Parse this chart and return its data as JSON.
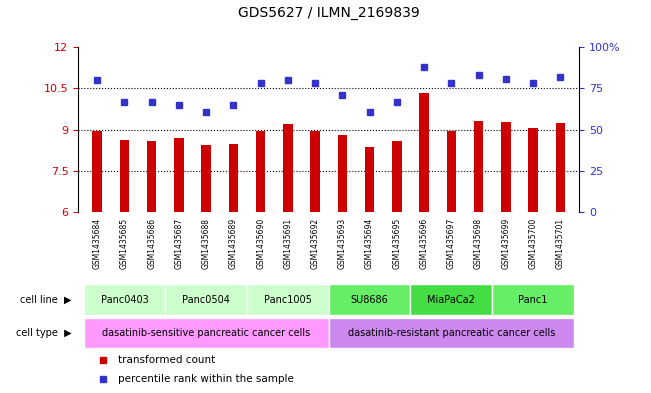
{
  "title": "GDS5627 / ILMN_2169839",
  "samples": [
    "GSM1435684",
    "GSM1435685",
    "GSM1435686",
    "GSM1435687",
    "GSM1435688",
    "GSM1435689",
    "GSM1435690",
    "GSM1435691",
    "GSM1435692",
    "GSM1435693",
    "GSM1435694",
    "GSM1435695",
    "GSM1435696",
    "GSM1435697",
    "GSM1435698",
    "GSM1435699",
    "GSM1435700",
    "GSM1435701"
  ],
  "bar_values": [
    8.97,
    8.62,
    8.6,
    8.7,
    8.43,
    8.47,
    8.97,
    9.22,
    8.94,
    8.82,
    8.37,
    8.6,
    10.35,
    8.97,
    9.32,
    9.28,
    9.05,
    9.23
  ],
  "dot_values": [
    80,
    67,
    67,
    65,
    61,
    65,
    78,
    80,
    78,
    71,
    61,
    67,
    88,
    78,
    83,
    81,
    78,
    82
  ],
  "bar_color": "#cc0000",
  "dot_color": "#3333cc",
  "ylim_left": [
    6,
    12
  ],
  "ylim_right": [
    0,
    100
  ],
  "yticks_left": [
    6,
    7.5,
    9,
    10.5,
    12
  ],
  "yticks_right": [
    0,
    25,
    50,
    75,
    100
  ],
  "cell_lines": [
    {
      "label": "Panc0403",
      "start": 0,
      "end": 2,
      "color": "#ccffcc"
    },
    {
      "label": "Panc0504",
      "start": 3,
      "end": 5,
      "color": "#ccffcc"
    },
    {
      "label": "Panc1005",
      "start": 6,
      "end": 8,
      "color": "#ccffcc"
    },
    {
      "label": "SU8686",
      "start": 9,
      "end": 11,
      "color": "#66ee66"
    },
    {
      "label": "MiaPaCa2",
      "start": 12,
      "end": 14,
      "color": "#44dd44"
    },
    {
      "label": "Panc1",
      "start": 15,
      "end": 17,
      "color": "#66ee66"
    }
  ],
  "cell_types": [
    {
      "label": "dasatinib-sensitive pancreatic cancer cells",
      "start": 0,
      "end": 8,
      "color": "#ff99ff"
    },
    {
      "label": "dasatinib-resistant pancreatic cancer cells",
      "start": 9,
      "end": 17,
      "color": "#cc88ee"
    }
  ],
  "legend_items": [
    {
      "label": "transformed count",
      "color": "#cc0000"
    },
    {
      "label": "percentile rank within the sample",
      "color": "#3333cc"
    }
  ],
  "background_color": "#ffffff",
  "sample_bg_color": "#cccccc"
}
